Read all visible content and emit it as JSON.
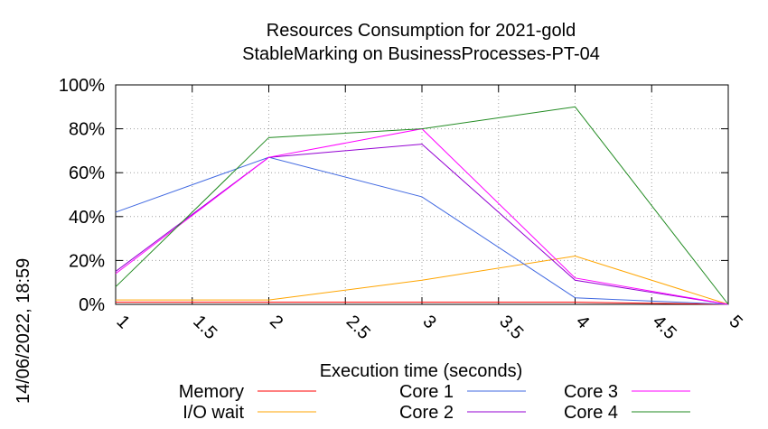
{
  "chart_data": {
    "type": "line",
    "title_lines": [
      "Resources Consumption for 2021-gold",
      "StableMarking on BusinessProcesses-PT-04"
    ],
    "xlabel": "Execution time (seconds)",
    "ylabel": "",
    "xlim": [
      1,
      5
    ],
    "ylim": [
      0,
      100
    ],
    "x_ticks": [
      "1",
      "1.5",
      "2",
      "2.5",
      "3",
      "3.5",
      "4",
      "4.5",
      "5"
    ],
    "y_ticks": [
      "0%",
      "20%",
      "40%",
      "60%",
      "80%",
      "100%"
    ],
    "grid": true,
    "legend_position": "bottom",
    "series": [
      {
        "name": "Memory",
        "color": "#ff0000",
        "x": [
          1,
          2,
          3,
          4,
          5
        ],
        "values": [
          1,
          1,
          1,
          1,
          0
        ]
      },
      {
        "name": "I/O wait",
        "color": "#ffa500",
        "x": [
          1,
          2,
          3,
          4,
          5
        ],
        "values": [
          2,
          2,
          11,
          22,
          0
        ]
      },
      {
        "name": "Core 1",
        "color": "#4169e1",
        "x": [
          1,
          2,
          3,
          4,
          5
        ],
        "values": [
          42,
          67,
          49,
          3,
          0
        ]
      },
      {
        "name": "Core 2",
        "color": "#9400d3",
        "x": [
          1,
          2,
          3,
          4,
          5
        ],
        "values": [
          15,
          67,
          73,
          11,
          0
        ]
      },
      {
        "name": "Core 3",
        "color": "#ff00ff",
        "x": [
          1,
          2,
          3,
          4,
          5
        ],
        "values": [
          14,
          67,
          80,
          12,
          0
        ]
      },
      {
        "name": "Core 4",
        "color": "#228b22",
        "x": [
          1,
          2,
          3,
          4,
          5
        ],
        "values": [
          8,
          76,
          80,
          90,
          0
        ]
      }
    ]
  },
  "timestamp": "14/06/2022, 18:59"
}
